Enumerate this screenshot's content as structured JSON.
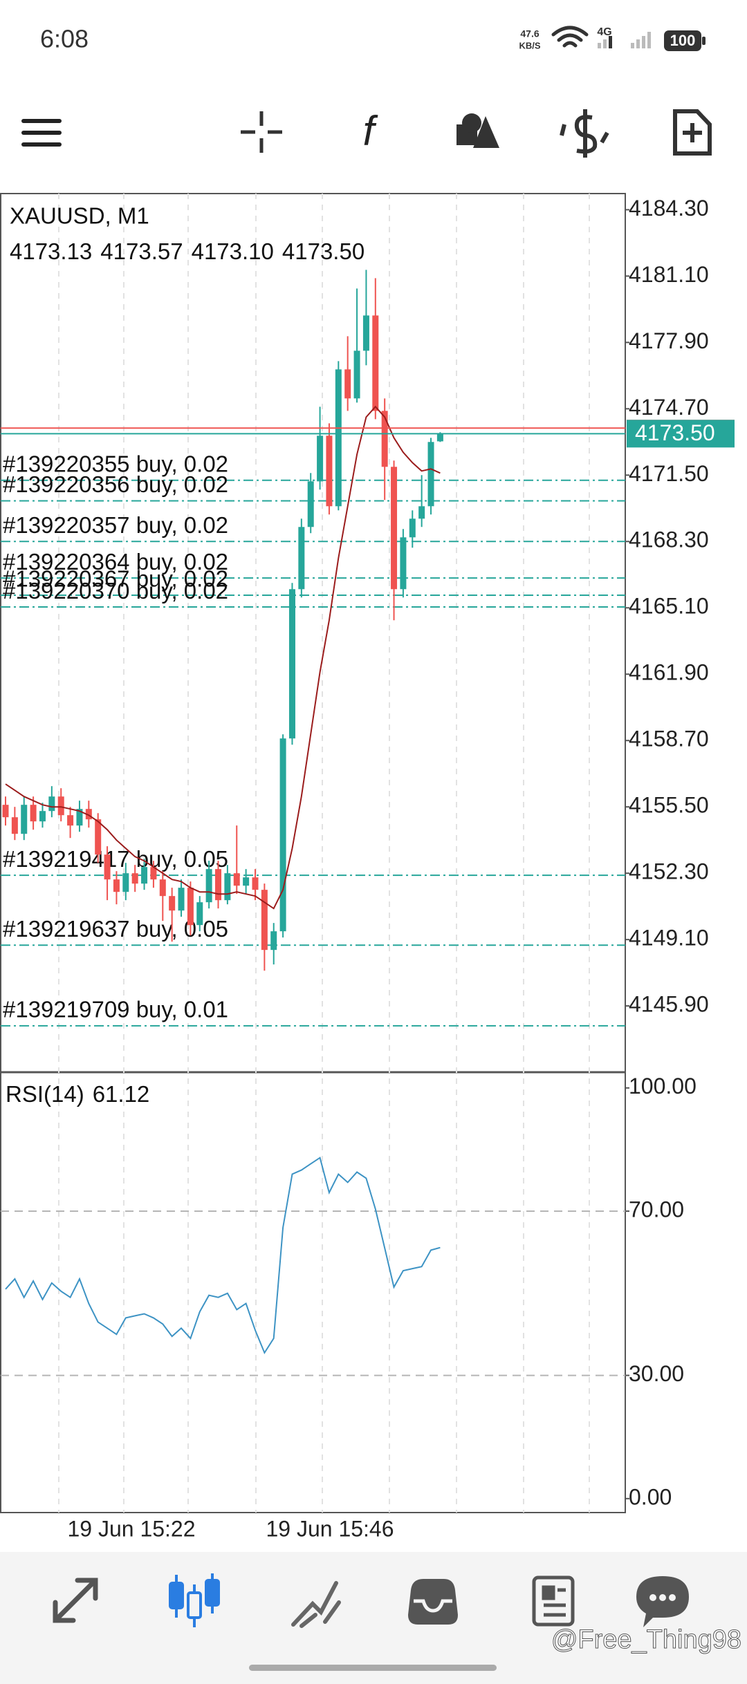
{
  "status_bar": {
    "time": "6:08",
    "net_speed": "47.6",
    "net_unit": "KB/S",
    "network": "4G",
    "battery": "100"
  },
  "chart": {
    "type": "candlestick",
    "symbol": "XAUUSD, M1",
    "ohlc": [
      "4173.13",
      "4173.57",
      "4173.10",
      "4173.50"
    ],
    "open": [
      4155.6,
      4155.0,
      4154.2,
      4155.6,
      4154.8,
      4155.3,
      4156.0,
      4155.1,
      4154.6,
      4155.4,
      4154.9,
      4153.2,
      4152.0,
      4151.4,
      4152.3,
      4151.8,
      4152.6,
      4152.0,
      4151.2,
      4150.5,
      4151.6,
      4149.8,
      4150.9,
      4152.5,
      4151.0,
      4152.3,
      4151.7,
      4152.1,
      4151.5,
      4148.6,
      4149.5,
      4158.8,
      4166.0,
      4169.0,
      4171.2,
      4173.4,
      4170.0,
      4176.6,
      4175.2,
      4177.5,
      4179.2,
      4174.6,
      4171.9,
      4166.0,
      4168.5,
      4169.4,
      4170.0,
      4173.13
    ],
    "high": [
      4156.0,
      4155.5,
      4156.0,
      4156.0,
      4155.7,
      4156.5,
      4156.4,
      4155.5,
      4155.8,
      4155.8,
      4155.2,
      4153.6,
      4152.4,
      4152.8,
      4152.7,
      4153.0,
      4152.9,
      4152.4,
      4151.6,
      4152.0,
      4151.9,
      4151.2,
      4152.9,
      4152.9,
      4152.7,
      4154.6,
      4152.5,
      4152.5,
      4151.8,
      4149.9,
      4159.0,
      4166.3,
      4169.4,
      4171.6,
      4174.8,
      4174.0,
      4177.0,
      4178.2,
      4180.5,
      4181.4,
      4181.0,
      4175.2,
      4172.2,
      4168.9,
      4169.8,
      4171.5,
      4173.3,
      4173.57
    ],
    "low": [
      4154.6,
      4153.9,
      4153.9,
      4154.4,
      4154.5,
      4155.0,
      4154.8,
      4154.0,
      4154.3,
      4154.5,
      4152.8,
      4151.0,
      4150.8,
      4151.0,
      4151.4,
      4151.5,
      4151.6,
      4150.0,
      4149.0,
      4150.2,
      4149.3,
      4149.5,
      4150.6,
      4150.6,
      4150.8,
      4151.3,
      4151.3,
      4151.0,
      4147.6,
      4147.9,
      4149.2,
      4158.5,
      4165.6,
      4168.7,
      4170.8,
      4169.6,
      4169.8,
      4174.6,
      4175.0,
      4176.8,
      4174.2,
      4170.3,
      4164.5,
      4165.6,
      4168.0,
      4169.0,
      4169.6,
      4173.1
    ],
    "close": [
      4155.0,
      4154.2,
      4155.6,
      4154.8,
      4155.3,
      4156.0,
      4155.1,
      4154.6,
      4155.4,
      4154.9,
      4153.2,
      4152.0,
      4151.4,
      4152.3,
      4151.8,
      4152.6,
      4152.0,
      4151.2,
      4150.5,
      4151.6,
      4149.8,
      4150.9,
      4152.5,
      4151.0,
      4152.3,
      4151.7,
      4152.1,
      4151.5,
      4148.6,
      4149.5,
      4158.8,
      4166.0,
      4169.0,
      4171.2,
      4173.4,
      4170.0,
      4176.6,
      4175.2,
      4177.5,
      4179.2,
      4174.6,
      4171.9,
      4166.0,
      4168.5,
      4169.4,
      4170.0,
      4173.1,
      4173.5
    ],
    "ma": [
      4156.6,
      4156.3,
      4156.0,
      4155.8,
      4155.6,
      4155.5,
      4155.5,
      4155.4,
      4155.3,
      4155.1,
      4154.8,
      4154.4,
      4153.9,
      4153.5,
      4153.1,
      4152.9,
      4152.6,
      4152.3,
      4152.0,
      4151.9,
      4151.6,
      4151.4,
      4151.4,
      4151.3,
      4151.3,
      4151.4,
      4151.3,
      4151.2,
      4150.9,
      4150.6,
      4151.5,
      4153.5,
      4156.0,
      4159.0,
      4162.0,
      4164.5,
      4167.5,
      4170.0,
      4172.5,
      4174.3,
      4174.8,
      4174.3,
      4173.3,
      4172.6,
      4172.1,
      4171.7,
      4171.8,
      4171.6
    ],
    "up_color": "#26a69a",
    "down_color": "#ef5350",
    "ma_color": "#9b1c1c",
    "ylim": [
      4142.77,
      4185.08
    ],
    "yticks": [
      {
        "value": 4184.3,
        "label": "4184.30"
      },
      {
        "value": 4181.1,
        "label": "4181.10"
      },
      {
        "value": 4177.9,
        "label": "4177.90"
      },
      {
        "value": 4174.7,
        "label": "4174.70"
      },
      {
        "value": 4171.5,
        "label": "4171.50"
      },
      {
        "value": 4168.3,
        "label": "4168.30"
      },
      {
        "value": 4165.1,
        "label": "4165.10"
      },
      {
        "value": 4161.9,
        "label": "4161.90"
      },
      {
        "value": 4158.7,
        "label": "4158.70"
      },
      {
        "value": 4155.5,
        "label": "4155.50"
      },
      {
        "value": 4152.3,
        "label": "4152.30"
      },
      {
        "value": 4149.1,
        "label": "4149.10"
      },
      {
        "value": 4145.9,
        "label": "4145.90"
      }
    ],
    "bid": {
      "value": 4173.5,
      "label": "4173.50"
    },
    "ask": 4173.77,
    "orders": [
      {
        "label": "#139220355 buy, 0.02",
        "price": 4171.25
      },
      {
        "label": "#139220356 buy, 0.02",
        "price": 4170.26
      },
      {
        "label": "#139220357 buy, 0.02",
        "price": 4168.3
      },
      {
        "label": "#139220364 buy, 0.02",
        "price": 4166.54
      },
      {
        "label": "#139220367 buy, 0.02",
        "price": 4165.71
      },
      {
        "label": "#139220370 buy, 0.02",
        "price": 4165.14
      },
      {
        "label": "#139219417 buy, 0.05",
        "price": 4152.2
      },
      {
        "label": "#139219637 buy, 0.05",
        "price": 4148.83
      },
      {
        "label": "#139219709 buy, 0.01",
        "price": 4144.94
      }
    ],
    "x_labels": [
      "19 Jun 15:22",
      "19 Jun 15:46"
    ]
  },
  "rsi": {
    "label": "RSI(14)",
    "color": "#3d93c4",
    "values": [
      51.0,
      53.5,
      49.0,
      53.0,
      48.5,
      52.5,
      50.5,
      49.0,
      53.5,
      47.5,
      43.0,
      41.5,
      40.0,
      44.0,
      44.5,
      45.0,
      44.0,
      42.5,
      39.5,
      41.5,
      39.0,
      45.5,
      49.5,
      49.0,
      50.0,
      46.0,
      47.5,
      41.0,
      35.5,
      39.0,
      66.0,
      79.0,
      80.0,
      81.5,
      83.0,
      74.5,
      79.0,
      77.0,
      79.5,
      78.0,
      70.5,
      61.0,
      51.5,
      55.5,
      56.0,
      56.5,
      60.5,
      61.12
    ],
    "ylim": [
      -3.4,
      103.66
    ],
    "yticks": [
      {
        "value": 100,
        "label": "100.00"
      },
      {
        "value": 70,
        "label": "70.00"
      },
      {
        "value": 30,
        "label": "30.00"
      },
      {
        "value": 0,
        "label": "0.00"
      }
    ],
    "levels": [
      70,
      30
    ]
  },
  "watermark": "@Free_Thing98"
}
